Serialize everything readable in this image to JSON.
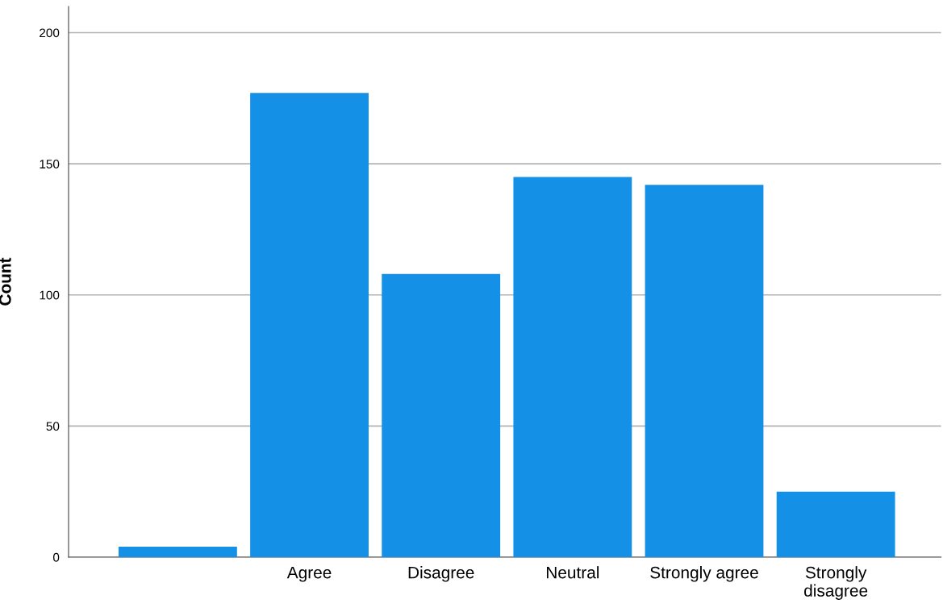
{
  "chart_data": {
    "type": "bar",
    "ylabel": "Count",
    "categories": [
      null,
      "Agree",
      "Disagree",
      "Neutral",
      "Strongly agree",
      "Strongly\ndisagree"
    ],
    "values": [
      4,
      177,
      108,
      145,
      142,
      25
    ],
    "color": "#1490e6",
    "ylim": [
      0,
      210
    ],
    "yticks": [
      0,
      50,
      100,
      150,
      200
    ],
    "grid": "y"
  }
}
